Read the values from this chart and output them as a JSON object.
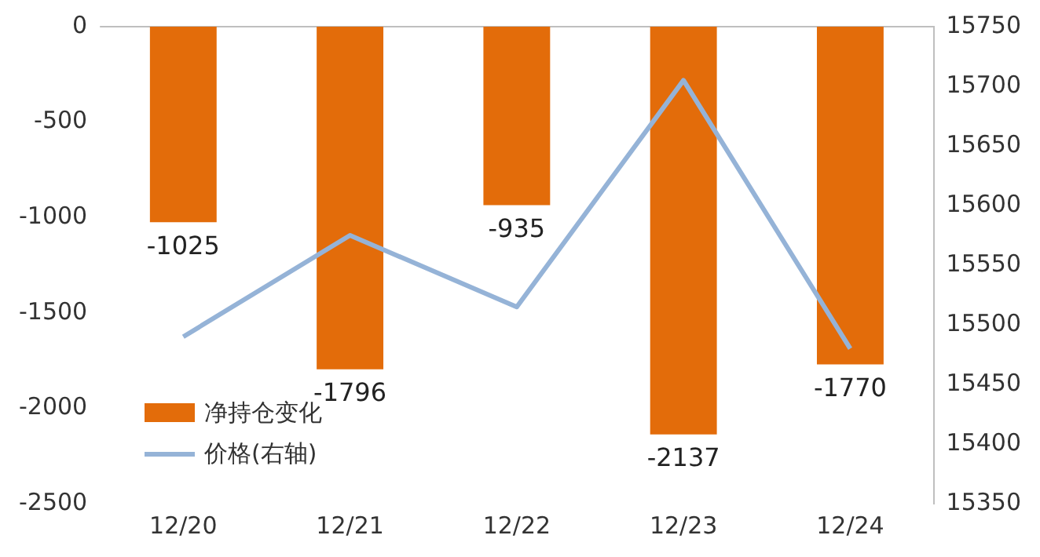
{
  "chart_data": {
    "type": "bar",
    "categories": [
      "12/20",
      "12/21",
      "12/22",
      "12/23",
      "12/24"
    ],
    "series": [
      {
        "name": "净持仓变化",
        "color": "#e36c0a",
        "values": [
          -1025,
          -1796,
          -935,
          -2137,
          -1770
        ],
        "value_labels": [
          "-1025",
          "-1796",
          "-935",
          "-2137",
          "-1770"
        ]
      },
      {
        "name": "价格(右轴)",
        "type": "line",
        "axis": "y2",
        "color": "#95b3d7",
        "values": [
          15490,
          15575,
          15515,
          15705,
          15480
        ]
      }
    ],
    "ylim": [
      -2500,
      0
    ],
    "yticks": [
      -2500,
      -2000,
      -1500,
      -1000,
      -500,
      0
    ],
    "y2lim": [
      15350,
      15750
    ],
    "y2ticks": [
      15350,
      15400,
      15450,
      15500,
      15550,
      15600,
      15650,
      15700,
      15750
    ],
    "grid": false,
    "legend": "bottom left",
    "marker": "none"
  }
}
